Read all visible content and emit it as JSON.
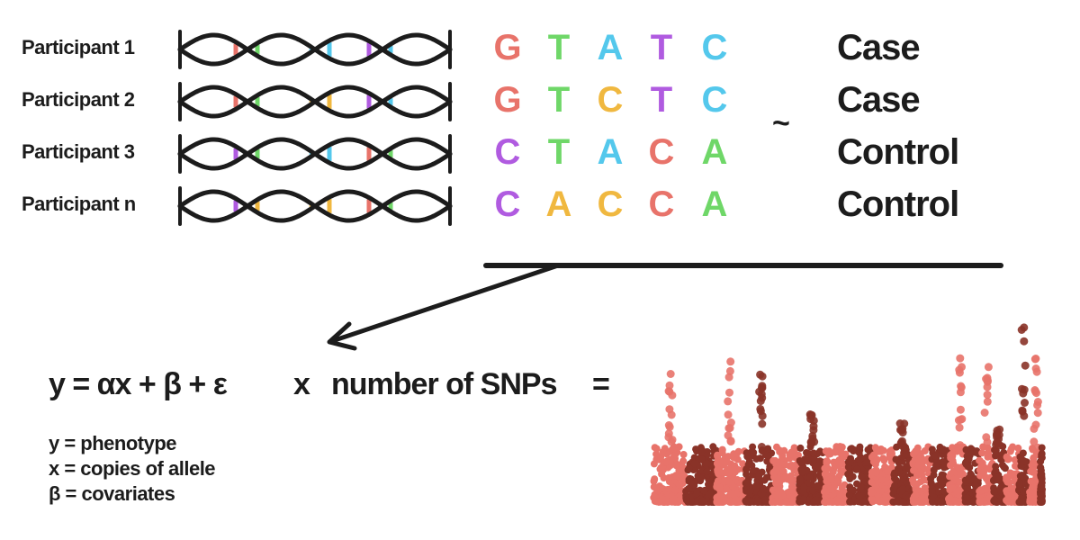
{
  "participants": [
    {
      "label": "Participant 1",
      "bases": [
        "G",
        "T",
        "A",
        "T",
        "C"
      ],
      "status": "Case",
      "rungs": [
        [
          "#e8736a",
          "#6fd768"
        ],
        [
          "#54c8ec",
          "#54c8ec"
        ],
        [
          "#b05be0",
          "#54c8ec"
        ]
      ]
    },
    {
      "label": "Participant 2",
      "bases": [
        "G",
        "T",
        "C",
        "T",
        "C"
      ],
      "status": "Case",
      "rungs": [
        [
          "#e8736a",
          "#6fd768"
        ],
        [
          "#f0b840",
          "#f0b840"
        ],
        [
          "#b05be0",
          "#54c8ec"
        ]
      ]
    },
    {
      "label": "Participant 3",
      "bases": [
        "C",
        "T",
        "A",
        "C",
        "A"
      ],
      "status": "Control",
      "rungs": [
        [
          "#b05be0",
          "#6fd768"
        ],
        [
          "#54c8ec",
          "#54c8ec"
        ],
        [
          "#e8736a",
          "#6fd768"
        ]
      ]
    },
    {
      "label": "Participant n",
      "bases": [
        "C",
        "A",
        "C",
        "C",
        "A"
      ],
      "status": "Control",
      "rungs": [
        [
          "#b05be0",
          "#f0b840"
        ],
        [
          "#f0b840",
          "#f0b840"
        ],
        [
          "#e8736a",
          "#6fd768"
        ]
      ]
    }
  ],
  "base_colors": {
    "G": "#e8736a",
    "T": "#6fd768",
    "A": "#54c8ec",
    "C_alt": "#f0b840",
    "T_alt": "#b05be0"
  },
  "relation_symbol": "~",
  "equation": {
    "formula": "y = αx + β + ε",
    "times": "x",
    "multiplier": "number of SNPs",
    "equals": "="
  },
  "legend": [
    "y = phenotype",
    "x = copies of allele",
    "β = covariates"
  ],
  "colors": {
    "ink": "#1c1c1c",
    "manhattan_light": "#e8736a",
    "manhattan_dark": "#8a3328"
  }
}
